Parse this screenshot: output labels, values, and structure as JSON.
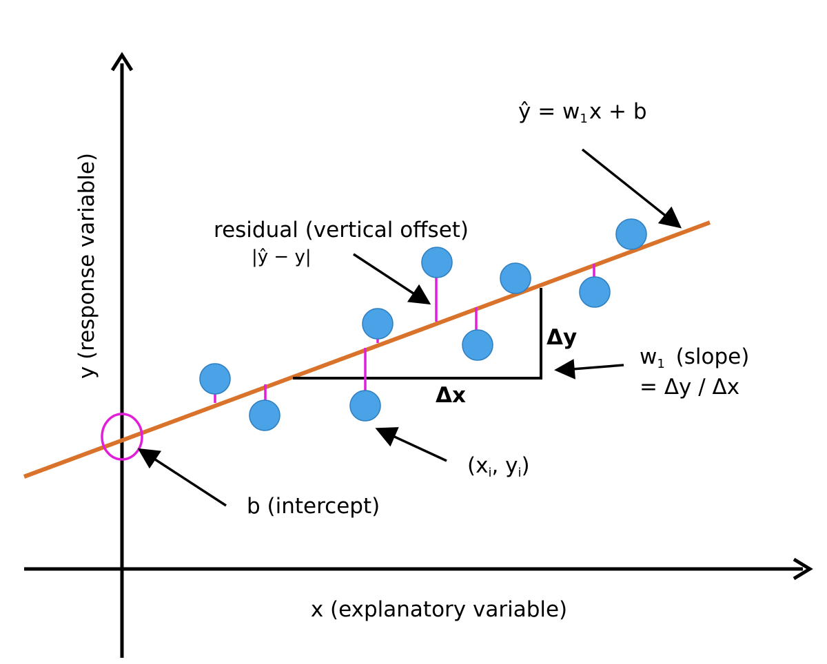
{
  "labels": {
    "x_axis": "x (explanatory variable)",
    "y_axis": "y (response variable)",
    "equation": {
      "yhat": "ŷ",
      "eq_main": " = w",
      "eq_sub": "1",
      "eq_rest": "x + b"
    },
    "residual": {
      "title": "residual (vertical offset)",
      "formula": "|ŷ − y|"
    },
    "delta_y": "Δy",
    "delta_x": "Δx",
    "slope": {
      "w": "w",
      "w_sub": "1",
      "name": " (slope)",
      "formula": "= Δy / Δx"
    },
    "point": {
      "open": "(x",
      "sub_i": "i",
      "mid": ", y",
      "sub_i2": "i",
      "close": ")"
    },
    "intercept": "b (intercept)"
  },
  "colors": {
    "regression_line": "#d9722a",
    "points": "#4aa3e6",
    "residuals": "#e11fd8",
    "intercept_circle": "#e11fd8",
    "axes": "#000000"
  },
  "icons": {
    "axis_arrowheads": "arrow-icon",
    "annotation_pointers": "arrow-icon"
  }
}
